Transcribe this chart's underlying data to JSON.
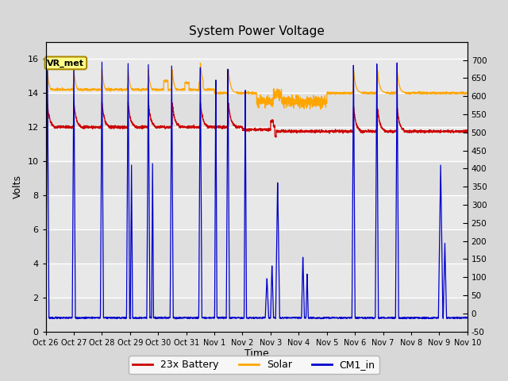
{
  "title": "System Power Voltage",
  "xlabel": "Time",
  "ylabel": "Volts",
  "left_ylim": [
    0,
    17
  ],
  "right_ylim": [
    -50,
    750
  ],
  "left_yticks": [
    0,
    2,
    4,
    6,
    8,
    10,
    12,
    14,
    16
  ],
  "right_yticks": [
    -50,
    0,
    50,
    100,
    150,
    200,
    250,
    300,
    350,
    400,
    450,
    500,
    550,
    600,
    650,
    700
  ],
  "bg_color": "#d8d8d8",
  "plot_bg_color": "#e8e8e8",
  "battery_color": "#cc0000",
  "solar_color": "#ffa500",
  "cm1_color": "#0000cc",
  "vr_met_label": "VR_met",
  "annotation_box_facecolor": "#ffff88",
  "annotation_box_edgecolor": "#aa8800",
  "tick_labels": [
    "Oct 26",
    "Oct 27",
    "Oct 28",
    "Oct 29",
    "Oct 30",
    "Oct 31",
    "Nov 1",
    "Nov 2",
    "Nov 3",
    "Nov 4",
    "Nov 5",
    "Nov 6",
    "Nov 7",
    "Nov 8",
    "Nov 9",
    "Nov 10"
  ],
  "legend_labels": [
    "23x Battery",
    "Solar",
    "CM1_in"
  ]
}
